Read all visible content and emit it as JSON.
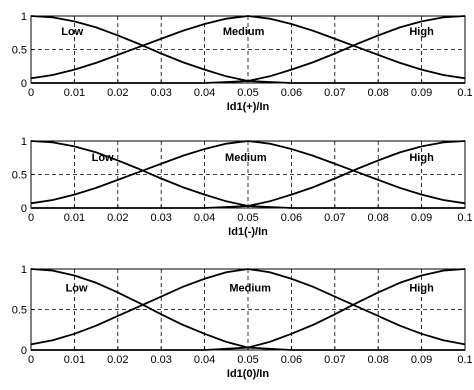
{
  "chart_data": [
    {
      "type": "line",
      "xlabel": "Id1(+)/In",
      "ylabel": "",
      "title": "",
      "xlim": [
        0,
        0.1
      ],
      "ylim": [
        0,
        1
      ],
      "x_ticks": [
        "0",
        "0.01",
        "0.02",
        "0.03",
        "0.04",
        "0.05",
        "0.06",
        "0.07",
        "0.08",
        "0.09",
        "0.1"
      ],
      "y_ticks": [
        "0",
        "0.5",
        "1"
      ],
      "grid": true,
      "series": [
        {
          "name": "Low",
          "x": [
            0,
            0.005,
            0.01,
            0.015,
            0.02,
            0.025,
            0.03,
            0.035,
            0.04,
            0.045,
            0.05,
            0.06,
            0.07,
            0.08,
            0.09,
            0.1
          ],
          "values": [
            1,
            0.98,
            0.92,
            0.83,
            0.71,
            0.58,
            0.44,
            0.31,
            0.2,
            0.1,
            0.03,
            0,
            0,
            0,
            0,
            0
          ]
        },
        {
          "name": "Medium",
          "x": [
            0,
            0.005,
            0.01,
            0.015,
            0.02,
            0.025,
            0.03,
            0.035,
            0.04,
            0.045,
            0.05,
            0.055,
            0.06,
            0.065,
            0.07,
            0.075,
            0.08,
            0.085,
            0.09,
            0.095,
            0.1
          ],
          "values": [
            0.07,
            0.12,
            0.2,
            0.3,
            0.42,
            0.54,
            0.66,
            0.78,
            0.88,
            0.96,
            1,
            0.96,
            0.88,
            0.78,
            0.66,
            0.54,
            0.42,
            0.3,
            0.2,
            0.12,
            0.07
          ]
        },
        {
          "name": "High",
          "x": [
            0,
            0.01,
            0.02,
            0.03,
            0.04,
            0.05,
            0.055,
            0.06,
            0.065,
            0.07,
            0.075,
            0.08,
            0.085,
            0.09,
            0.095,
            0.1
          ],
          "values": [
            0,
            0,
            0,
            0,
            0,
            0.03,
            0.1,
            0.2,
            0.31,
            0.44,
            0.58,
            0.71,
            0.83,
            0.92,
            0.98,
            1
          ]
        }
      ],
      "annotations": [
        "Low",
        "Medium",
        "High"
      ]
    },
    {
      "type": "line",
      "xlabel": "Id1(-)/In",
      "ylabel": "",
      "title": "",
      "xlim": [
        0,
        0.1
      ],
      "ylim": [
        0,
        1
      ],
      "x_ticks": [
        "0",
        "0.01",
        "0.02",
        "0.03",
        "0.04",
        "0.05",
        "0.06",
        "0.07",
        "0.08",
        "0.09",
        "0.1"
      ],
      "y_ticks": [
        "0",
        "0.5",
        "1"
      ],
      "grid": true,
      "series": [
        {
          "name": "Low",
          "x": [
            0,
            0.005,
            0.01,
            0.015,
            0.02,
            0.025,
            0.03,
            0.035,
            0.04,
            0.045,
            0.05,
            0.06,
            0.07,
            0.08,
            0.09,
            0.1
          ],
          "values": [
            1,
            0.98,
            0.92,
            0.83,
            0.71,
            0.58,
            0.44,
            0.31,
            0.2,
            0.1,
            0.03,
            0,
            0,
            0,
            0,
            0
          ]
        },
        {
          "name": "Medium",
          "x": [
            0,
            0.005,
            0.01,
            0.015,
            0.02,
            0.025,
            0.03,
            0.035,
            0.04,
            0.045,
            0.05,
            0.055,
            0.06,
            0.065,
            0.07,
            0.075,
            0.08,
            0.085,
            0.09,
            0.095,
            0.1
          ],
          "values": [
            0.07,
            0.12,
            0.2,
            0.3,
            0.42,
            0.54,
            0.66,
            0.78,
            0.88,
            0.96,
            1,
            0.96,
            0.88,
            0.78,
            0.66,
            0.54,
            0.42,
            0.3,
            0.2,
            0.12,
            0.07
          ]
        },
        {
          "name": "High",
          "x": [
            0,
            0.01,
            0.02,
            0.03,
            0.04,
            0.05,
            0.055,
            0.06,
            0.065,
            0.07,
            0.075,
            0.08,
            0.085,
            0.09,
            0.095,
            0.1
          ],
          "values": [
            0,
            0,
            0,
            0,
            0,
            0.03,
            0.1,
            0.2,
            0.31,
            0.44,
            0.58,
            0.71,
            0.83,
            0.92,
            0.98,
            1
          ]
        }
      ],
      "annotations": [
        "Low",
        "Medium",
        "High"
      ]
    },
    {
      "type": "line",
      "xlabel": "Id1(0)/In",
      "ylabel": "",
      "title": "",
      "xlim": [
        0,
        0.1
      ],
      "ylim": [
        0,
        1
      ],
      "x_ticks": [
        "0",
        "0.01",
        "0.02",
        "0.03",
        "0.04",
        "0.05",
        "0.06",
        "0.07",
        "0.08",
        "0.09",
        "0.1"
      ],
      "y_ticks": [
        "0",
        "0.5",
        "1"
      ],
      "grid": true,
      "series": [
        {
          "name": "Low",
          "x": [
            0,
            0.005,
            0.01,
            0.015,
            0.02,
            0.025,
            0.03,
            0.035,
            0.04,
            0.045,
            0.05,
            0.06,
            0.07,
            0.08,
            0.09,
            0.1
          ],
          "values": [
            1,
            0.98,
            0.92,
            0.83,
            0.71,
            0.58,
            0.44,
            0.31,
            0.2,
            0.1,
            0.03,
            0,
            0,
            0,
            0,
            0
          ]
        },
        {
          "name": "Medium",
          "x": [
            0,
            0.005,
            0.01,
            0.015,
            0.02,
            0.025,
            0.03,
            0.035,
            0.04,
            0.045,
            0.05,
            0.055,
            0.06,
            0.065,
            0.07,
            0.075,
            0.08,
            0.085,
            0.09,
            0.095,
            0.1
          ],
          "values": [
            0.07,
            0.12,
            0.2,
            0.3,
            0.42,
            0.54,
            0.66,
            0.78,
            0.88,
            0.96,
            1,
            0.96,
            0.88,
            0.78,
            0.66,
            0.54,
            0.42,
            0.3,
            0.2,
            0.12,
            0.07
          ]
        },
        {
          "name": "High",
          "x": [
            0,
            0.01,
            0.02,
            0.03,
            0.04,
            0.05,
            0.055,
            0.06,
            0.065,
            0.07,
            0.075,
            0.08,
            0.085,
            0.09,
            0.095,
            0.1
          ],
          "values": [
            0,
            0,
            0,
            0,
            0,
            0.03,
            0.1,
            0.2,
            0.31,
            0.44,
            0.58,
            0.71,
            0.83,
            0.92,
            0.98,
            1
          ]
        }
      ],
      "annotations": [
        "Low",
        "Medium",
        "High"
      ]
    }
  ]
}
